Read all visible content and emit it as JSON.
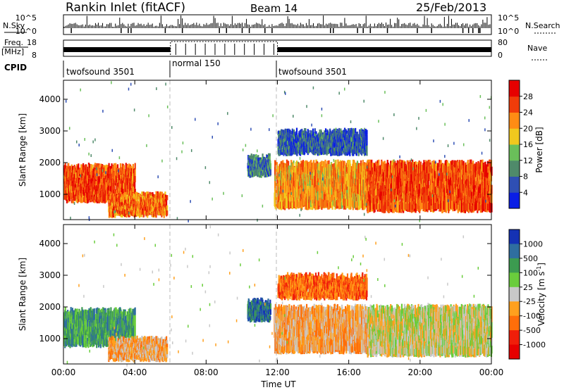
{
  "header": {
    "station": "Rankin Inlet (fitACF)",
    "beam": "Beam 14",
    "date": "25/Feb/2013"
  },
  "labels": {
    "nsky": "N.Sky",
    "nsearch": "N.Search",
    "freq_line1": "Freq.",
    "freq_line2": "[MHz]",
    "nave": "Nave",
    "cpid": "CPID",
    "power_colorbar": "Power [dB]",
    "velocity_colorbar_main": "Velocity [m s",
    "velocity_colorbar_sup": "-1",
    "velocity_colorbar_end": "]"
  },
  "noise_axis": {
    "left_ticks": [
      "10^5",
      "10^0"
    ],
    "right_ticks": [
      "10^5",
      "10^0"
    ]
  },
  "freq_axis": {
    "left_ticks": [
      "18",
      "8"
    ],
    "right_ticks": [
      "80",
      "0"
    ]
  },
  "cpid_segments": [
    {
      "label": "twofsound 3501",
      "start_hour": 0,
      "end_hour": 6
    },
    {
      "label": "normal 150",
      "start_hour": 6,
      "end_hour": 12
    },
    {
      "label": "twofsound 3501",
      "start_hour": 12,
      "end_hour": 24
    }
  ],
  "chart_data": [
    {
      "type": "heatmap",
      "title": "",
      "ylabel": "Slant Range [km]",
      "xlabel": "",
      "x_range_hours": [
        0,
        24
      ],
      "ylim": [
        200,
        4600
      ],
      "y_ticks": [
        "1000",
        "2000",
        "3000",
        "4000"
      ],
      "colorbar_label": "Power [dB]",
      "colorbar_ticks": [
        "4",
        "8",
        "12",
        "16",
        "20",
        "24",
        "28"
      ],
      "colorbar_range": [
        0,
        30
      ],
      "colors": [
        "#0a1ee6",
        "#2f4fb4",
        "#4f8a6a",
        "#6abf5a",
        "#f0c81e",
        "#ff8c14",
        "#f03c0a",
        "#e60000"
      ],
      "echo_regions": [
        {
          "t0": 0.0,
          "t1": 4.0,
          "r0": 700,
          "r1": 2000,
          "value": 24
        },
        {
          "t0": 2.5,
          "t1": 5.8,
          "r0": 250,
          "r1": 1100,
          "value": 22
        },
        {
          "t0": 10.3,
          "t1": 11.6,
          "r0": 1500,
          "r1": 2300,
          "value": 8
        },
        {
          "t0": 11.8,
          "t1": 17.0,
          "r0": 500,
          "r1": 2100,
          "value": 20
        },
        {
          "t0": 12.0,
          "t1": 17.0,
          "r0": 2200,
          "r1": 3100,
          "value": 6
        },
        {
          "t0": 17.0,
          "t1": 24.0,
          "r0": 400,
          "r1": 2100,
          "value": 24
        }
      ]
    },
    {
      "type": "heatmap",
      "title": "",
      "ylabel": "Slant Range [km]",
      "xlabel": "Time UT",
      "x_range_hours": [
        0,
        24
      ],
      "x_ticks": [
        "00:00",
        "04:00",
        "08:00",
        "12:00",
        "16:00",
        "20:00",
        "00:00"
      ],
      "ylim": [
        200,
        4600
      ],
      "y_ticks": [
        "1000",
        "2000",
        "3000",
        "4000"
      ],
      "colorbar_label": "Velocity [m s-1]",
      "colorbar_ticks": [
        "1000",
        "500",
        "100",
        "25",
        "-25",
        "-100",
        "-500",
        "-1000"
      ],
      "colors": [
        "#1432b4",
        "#2f6ea0",
        "#3c9b50",
        "#6acd3c",
        "#c8c8c8",
        "#ffa01e",
        "#ff6e0a",
        "#f01e0a",
        "#e60000"
      ],
      "echo_regions": [
        {
          "t0": 0.0,
          "t1": 4.0,
          "r0": 700,
          "r1": 2000,
          "value": 100
        },
        {
          "t0": 2.5,
          "t1": 5.8,
          "r0": 250,
          "r1": 1100,
          "value": -100
        },
        {
          "t0": 10.3,
          "t1": 11.6,
          "r0": 1500,
          "r1": 2300,
          "value": 500
        },
        {
          "t0": 11.8,
          "t1": 17.0,
          "r0": 500,
          "r1": 2100,
          "value": -100
        },
        {
          "t0": 12.0,
          "t1": 17.0,
          "r0": 2200,
          "r1": 3100,
          "value": -500
        },
        {
          "t0": 17.0,
          "t1": 24.0,
          "r0": 400,
          "r1": 2100,
          "value": 25
        }
      ]
    }
  ]
}
